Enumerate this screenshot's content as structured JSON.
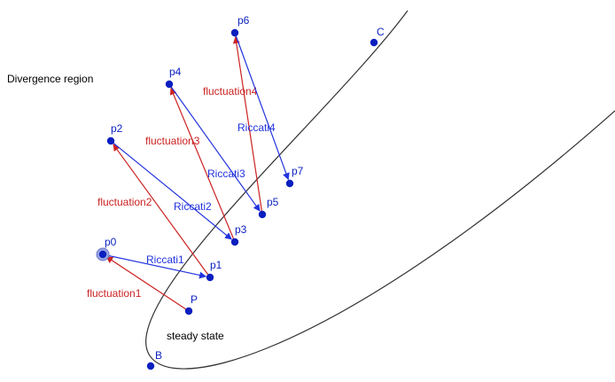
{
  "region_label": "Divergence region",
  "steady_state_label": "steady state",
  "colors": {
    "curve": "#333333",
    "point": "#0a1fbf",
    "riccati": "#2233dd",
    "fluctuation": "#cc2222",
    "region_text": "#111111",
    "steady_text": "#111111"
  },
  "points": [
    {
      "id": "p0",
      "label": "p0",
      "highlight": true
    },
    {
      "id": "p1",
      "label": "p1"
    },
    {
      "id": "p2",
      "label": "p2"
    },
    {
      "id": "p3",
      "label": "p3"
    },
    {
      "id": "p4",
      "label": "p4"
    },
    {
      "id": "p5",
      "label": "p5"
    },
    {
      "id": "p6",
      "label": "p6"
    },
    {
      "id": "p7",
      "label": "p7"
    },
    {
      "id": "P",
      "label": "P"
    },
    {
      "id": "B",
      "label": "B"
    },
    {
      "id": "C",
      "label": "C"
    }
  ],
  "arrows": [
    {
      "from": "P",
      "to": "p0",
      "label": "fluctuation1",
      "kind": "fluctuation"
    },
    {
      "from": "p0",
      "to": "p1",
      "label": "Riccati1",
      "kind": "riccati"
    },
    {
      "from": "p1",
      "to": "p2",
      "label": "fluctuation2",
      "kind": "fluctuation"
    },
    {
      "from": "p2",
      "to": "p3",
      "label": "Riccati2",
      "kind": "riccati"
    },
    {
      "from": "p3",
      "to": "p4",
      "label": "fluctuation3",
      "kind": "fluctuation"
    },
    {
      "from": "p4",
      "to": "p5",
      "label": "Riccati3",
      "kind": "riccati"
    },
    {
      "from": "p5",
      "to": "p6",
      "label": "fluctuation4",
      "kind": "fluctuation"
    },
    {
      "from": "p6",
      "to": "p7",
      "label": "Riccati4",
      "kind": "riccati"
    }
  ]
}
